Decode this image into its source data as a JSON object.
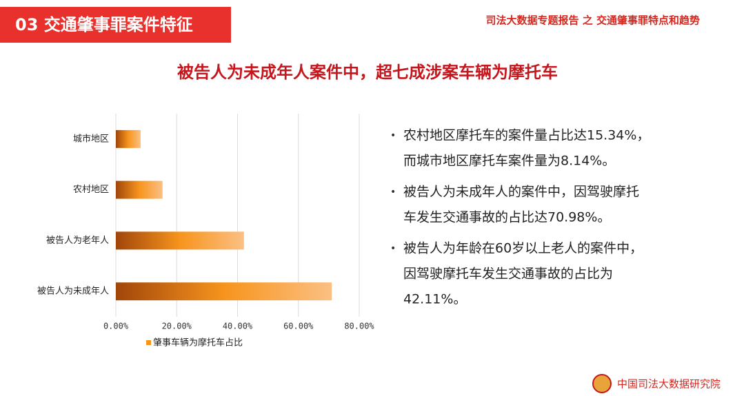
{
  "header": {
    "section": "03  交通肇事罪案件特征",
    "report": "司法大数据专题报告 之 交通肇事罪特点和趋势"
  },
  "chart_data": {
    "type": "hbar",
    "title": "被告人为未成年人案件中，超七成涉案车辆为摩托车",
    "categories": [
      "城市地区",
      "农村地区",
      "被告人为老年人",
      "被告人为未成年人"
    ],
    "series": [
      {
        "name": "肇事车辆为摩托车占比",
        "color": "#f7941d",
        "values": [
          8.14,
          15.34,
          42.11,
          70.98
        ]
      }
    ],
    "xlim": [
      0,
      80
    ],
    "xticks": [
      {
        "value": 0,
        "label": "0.00%"
      },
      {
        "value": 20,
        "label": "20.00%"
      },
      {
        "value": 40,
        "label": "40.00%"
      },
      {
        "value": 60,
        "label": "60.00%"
      },
      {
        "value": 80,
        "label": "80.00%"
      }
    ],
    "grid": true,
    "legend": "bottom"
  },
  "bullets": [
    [
      "农村地区摩托车的案件量占比达15.34%，",
      "而城市地区摩托车案件量为8.14%。"
    ],
    [
      "被告人为未成年人的案件中，因驾驶摩托",
      "车发生交通事故的占比达70.98%。"
    ],
    [
      "被告人为年龄在60岁以上老人的案件中，",
      "因驾驶摩托车发生交通事故的占比为",
      "42.11%。"
    ]
  ],
  "footer": {
    "org": "中国司法大数据研究院"
  }
}
